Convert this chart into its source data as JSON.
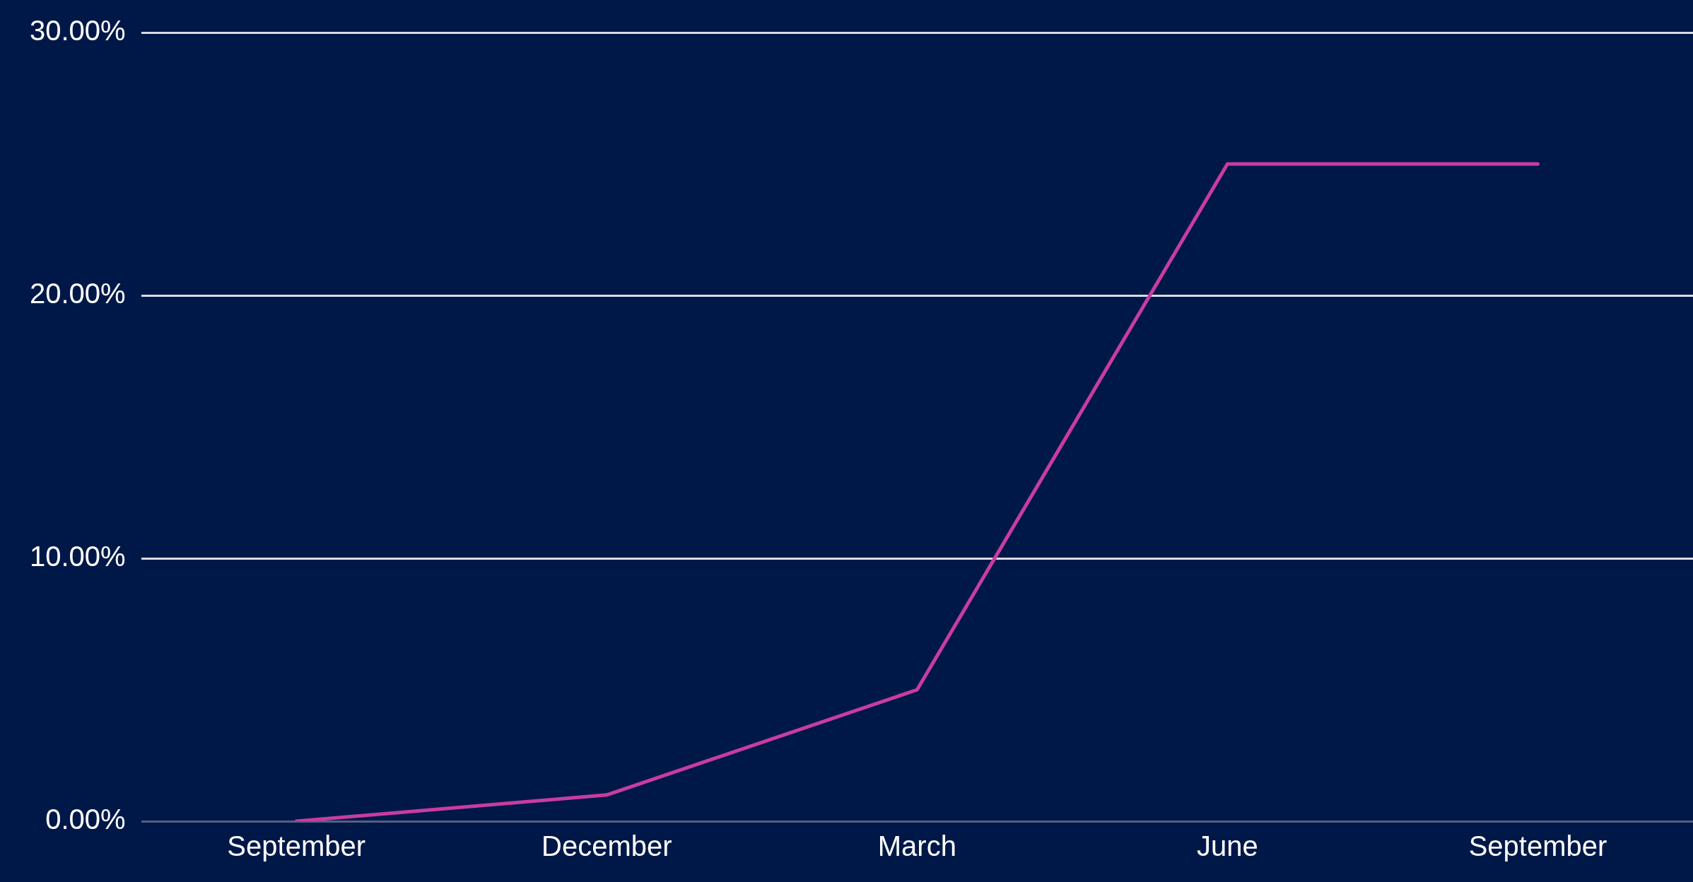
{
  "chart_data": {
    "type": "line",
    "categories": [
      "September",
      "December",
      "March",
      "June",
      "September"
    ],
    "series": [
      {
        "color": "#c83ca0",
        "values": [
          0,
          1,
          5,
          25,
          25
        ]
      }
    ],
    "ylim": [
      0,
      30
    ],
    "yticks": [
      {
        "value": 0,
        "label": "0.00%"
      },
      {
        "value": 10,
        "label": "10.00%"
      },
      {
        "value": 20,
        "label": "20.00%"
      },
      {
        "value": 30,
        "label": "30.00%"
      }
    ],
    "grid": "y",
    "legend": false,
    "marker": "none",
    "line_style": "solid"
  }
}
